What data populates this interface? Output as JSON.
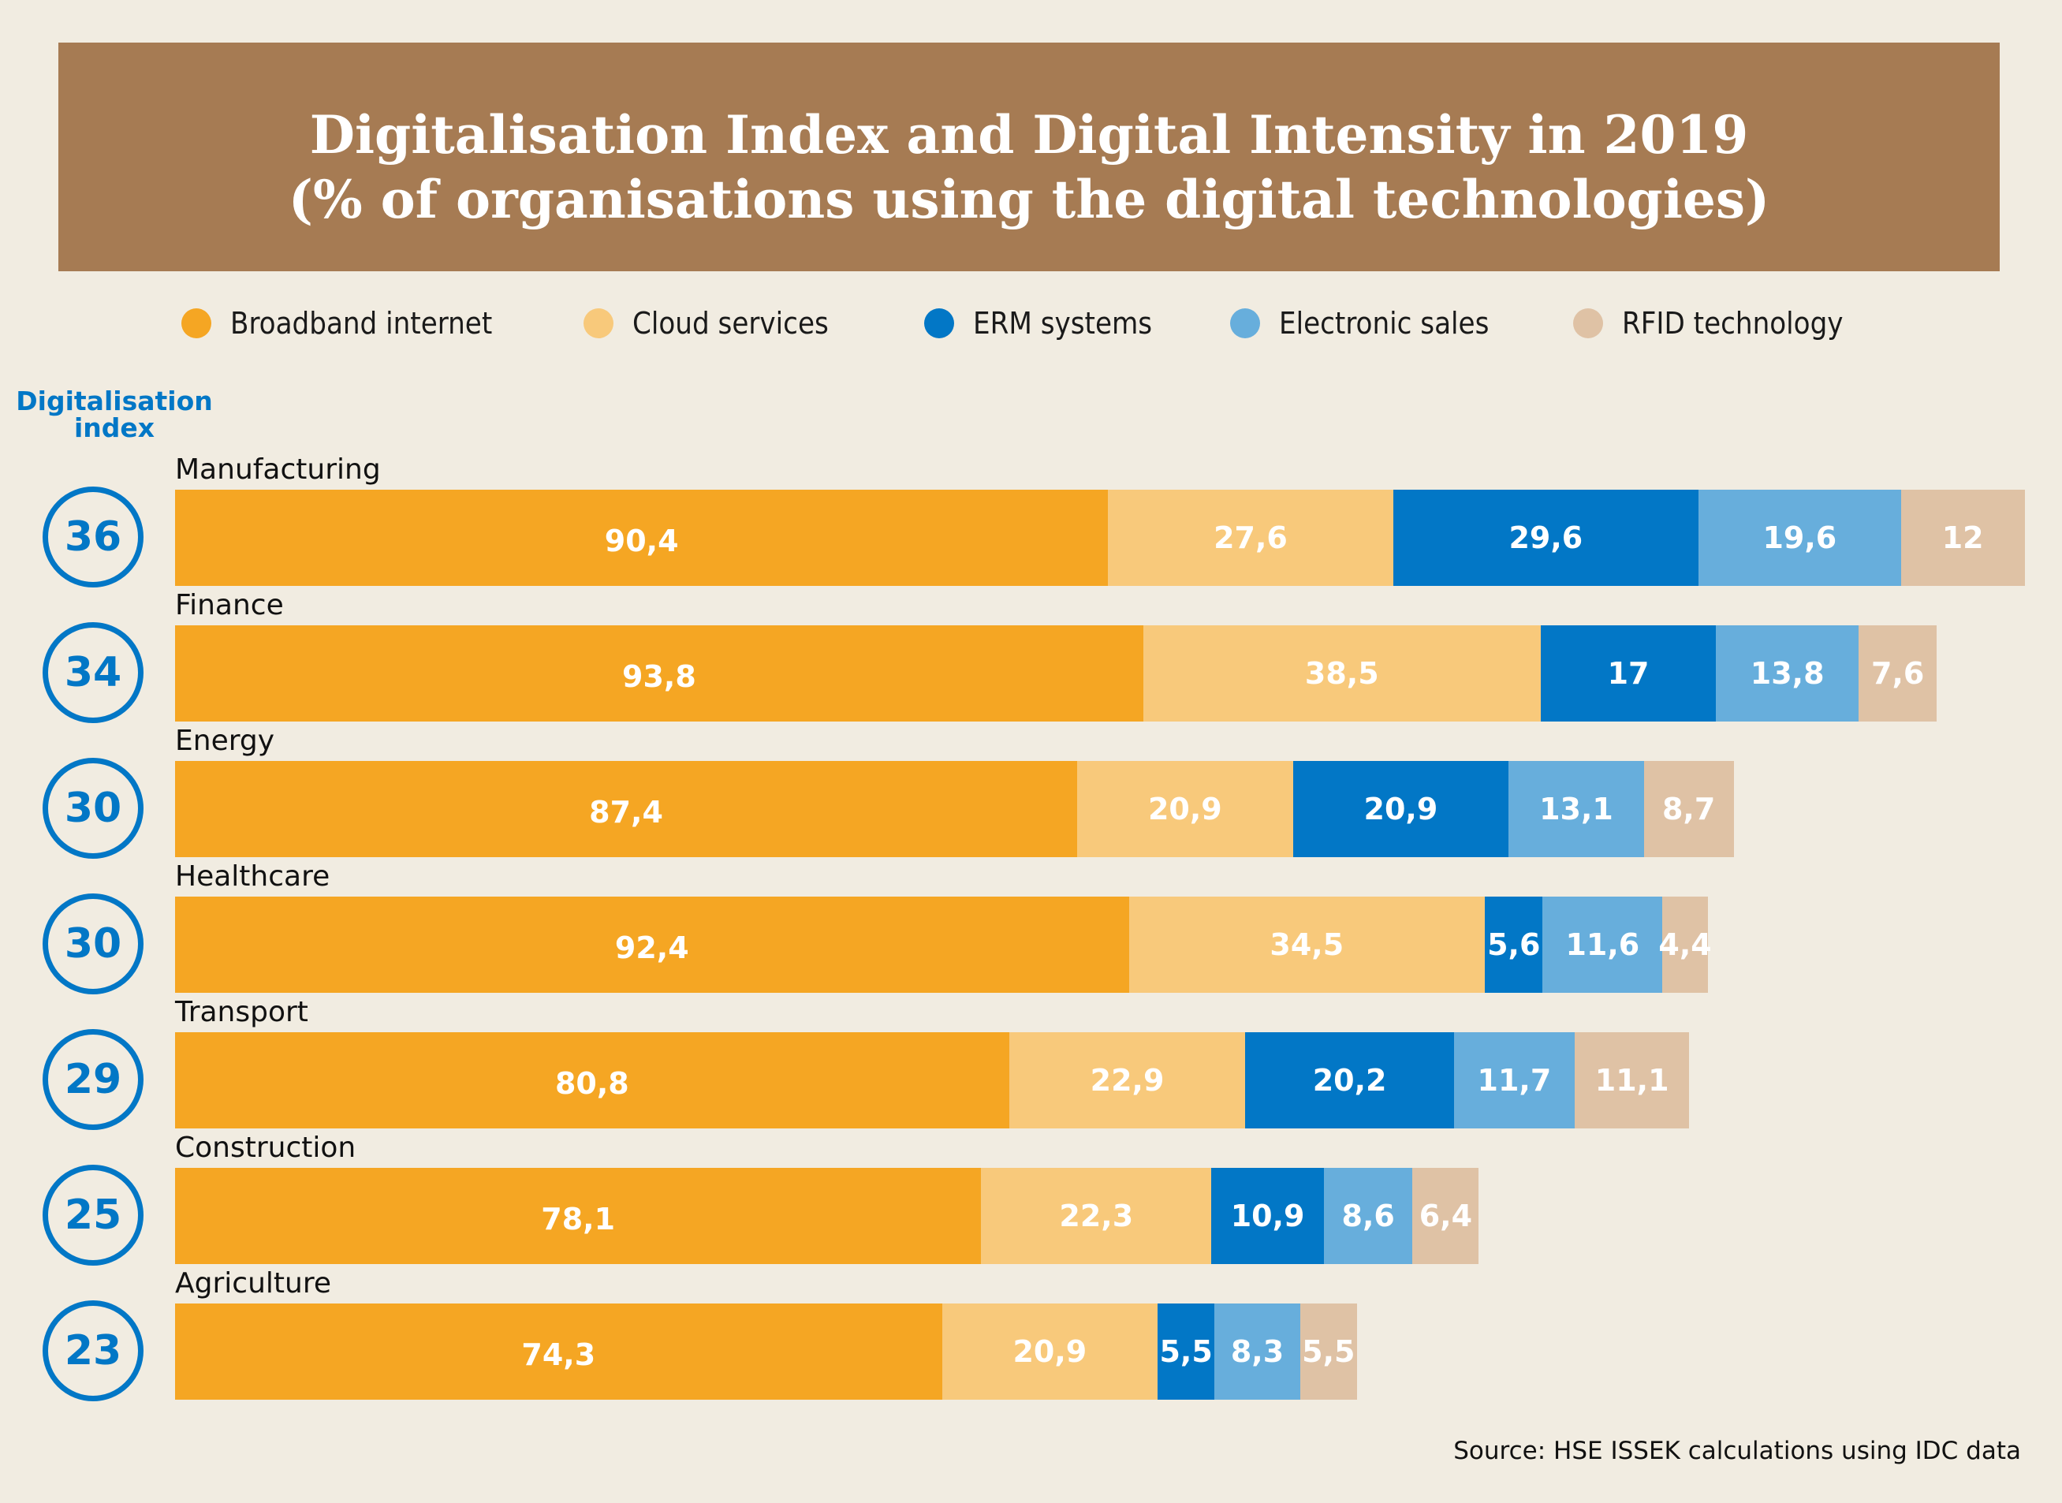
{
  "header": {
    "title_line1": "Digitalisation Index and Digital Intensity in 2019",
    "title_line2": "(% of organisations using the digital technologies)"
  },
  "index_header": {
    "line1": "Digitalisation",
    "line2": "index"
  },
  "source": "Source: HSE ISSEK calculations using IDC data",
  "colors": {
    "background": "#f1ece1",
    "title_box": "#a67b53",
    "index_blue": "#0277c6"
  },
  "chart_data": {
    "type": "bar",
    "orientation": "horizontal",
    "stacked": true,
    "title": "Digitalisation Index and Digital Intensity in 2019 (% of organisations using the digital technologies)",
    "xlabel": "",
    "ylabel": "",
    "legend_position": "top",
    "grid": false,
    "categories": [
      "Manufacturing",
      "Finance",
      "Energy",
      "Healthcare",
      "Transport",
      "Construction",
      "Agriculture"
    ],
    "digitalisation_index": [
      36,
      34,
      30,
      30,
      29,
      25,
      23
    ],
    "series": [
      {
        "name": "Broadband internet",
        "color": "#f5a623",
        "values": [
          90.4,
          93.8,
          87.4,
          92.4,
          80.8,
          78.1,
          74.3
        ],
        "labels": [
          "90,4",
          "93,8",
          "87,4",
          "92,4",
          "80,8",
          "78,1",
          "74,3"
        ]
      },
      {
        "name": "Cloud services",
        "color": "#f8c97b",
        "values": [
          27.6,
          38.5,
          20.9,
          34.5,
          22.9,
          22.3,
          20.9
        ],
        "labels": [
          "27,6",
          "38,5",
          "20,9",
          "34,5",
          "22,9",
          "22,3",
          "20,9"
        ]
      },
      {
        "name": "ERM systems",
        "color": "#0277c6",
        "values": [
          29.6,
          17,
          20.9,
          5.6,
          20.2,
          10.9,
          5.5
        ],
        "labels": [
          "29,6",
          "17",
          "20,9",
          "5,6",
          "20,2",
          "10,9",
          "5,5"
        ]
      },
      {
        "name": "Electronic sales",
        "color": "#67aedc",
        "values": [
          19.6,
          13.8,
          13.1,
          11.6,
          11.7,
          8.6,
          8.3
        ],
        "labels": [
          "19,6",
          "13,8",
          "13,1",
          "11,6",
          "11,7",
          "8,6",
          "8,3"
        ]
      },
      {
        "name": "RFID technology",
        "color": "#dfc2a5",
        "values": [
          12,
          7.6,
          8.7,
          4.4,
          11.1,
          6.4,
          5.5
        ],
        "labels": [
          "12",
          "7,6",
          "8,7",
          "4,4",
          "11,1",
          "6,4",
          "5,5"
        ]
      }
    ]
  }
}
